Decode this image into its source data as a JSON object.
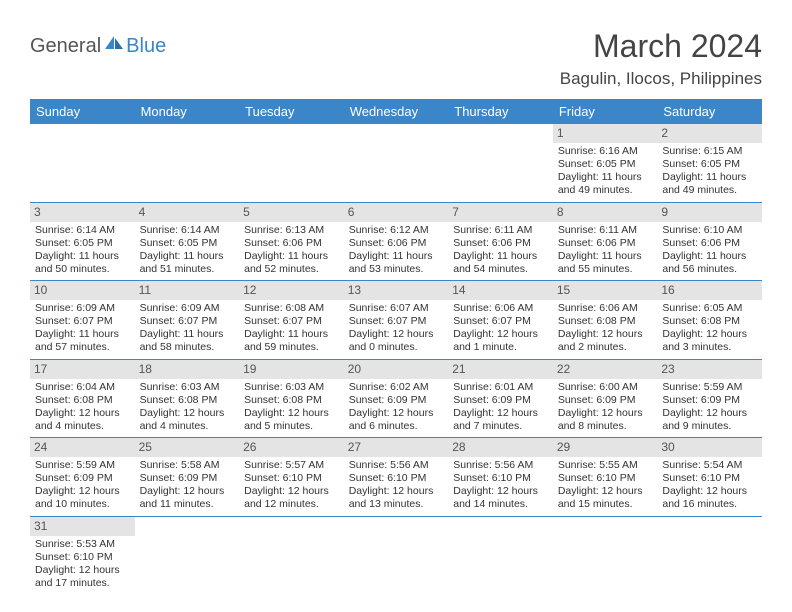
{
  "logo": {
    "text1": "General",
    "text2": "Blue",
    "color_general": "#555555",
    "color_blue": "#3a86c8"
  },
  "title": "March 2024",
  "location": "Bagulin, Ilocos, Philippines",
  "header_bg": "#3a86c8",
  "daynum_bg": "#e4e4e4",
  "border_color": "#3a86c8",
  "weekdays": [
    "Sunday",
    "Monday",
    "Tuesday",
    "Wednesday",
    "Thursday",
    "Friday",
    "Saturday"
  ],
  "weeks": [
    [
      null,
      null,
      null,
      null,
      null,
      {
        "n": "1",
        "sr": "Sunrise: 6:16 AM",
        "ss": "Sunset: 6:05 PM",
        "dl": "Daylight: 11 hours and 49 minutes."
      },
      {
        "n": "2",
        "sr": "Sunrise: 6:15 AM",
        "ss": "Sunset: 6:05 PM",
        "dl": "Daylight: 11 hours and 49 minutes."
      }
    ],
    [
      {
        "n": "3",
        "sr": "Sunrise: 6:14 AM",
        "ss": "Sunset: 6:05 PM",
        "dl": "Daylight: 11 hours and 50 minutes."
      },
      {
        "n": "4",
        "sr": "Sunrise: 6:14 AM",
        "ss": "Sunset: 6:05 PM",
        "dl": "Daylight: 11 hours and 51 minutes."
      },
      {
        "n": "5",
        "sr": "Sunrise: 6:13 AM",
        "ss": "Sunset: 6:06 PM",
        "dl": "Daylight: 11 hours and 52 minutes."
      },
      {
        "n": "6",
        "sr": "Sunrise: 6:12 AM",
        "ss": "Sunset: 6:06 PM",
        "dl": "Daylight: 11 hours and 53 minutes."
      },
      {
        "n": "7",
        "sr": "Sunrise: 6:11 AM",
        "ss": "Sunset: 6:06 PM",
        "dl": "Daylight: 11 hours and 54 minutes."
      },
      {
        "n": "8",
        "sr": "Sunrise: 6:11 AM",
        "ss": "Sunset: 6:06 PM",
        "dl": "Daylight: 11 hours and 55 minutes."
      },
      {
        "n": "9",
        "sr": "Sunrise: 6:10 AM",
        "ss": "Sunset: 6:06 PM",
        "dl": "Daylight: 11 hours and 56 minutes."
      }
    ],
    [
      {
        "n": "10",
        "sr": "Sunrise: 6:09 AM",
        "ss": "Sunset: 6:07 PM",
        "dl": "Daylight: 11 hours and 57 minutes."
      },
      {
        "n": "11",
        "sr": "Sunrise: 6:09 AM",
        "ss": "Sunset: 6:07 PM",
        "dl": "Daylight: 11 hours and 58 minutes."
      },
      {
        "n": "12",
        "sr": "Sunrise: 6:08 AM",
        "ss": "Sunset: 6:07 PM",
        "dl": "Daylight: 11 hours and 59 minutes."
      },
      {
        "n": "13",
        "sr": "Sunrise: 6:07 AM",
        "ss": "Sunset: 6:07 PM",
        "dl": "Daylight: 12 hours and 0 minutes."
      },
      {
        "n": "14",
        "sr": "Sunrise: 6:06 AM",
        "ss": "Sunset: 6:07 PM",
        "dl": "Daylight: 12 hours and 1 minute."
      },
      {
        "n": "15",
        "sr": "Sunrise: 6:06 AM",
        "ss": "Sunset: 6:08 PM",
        "dl": "Daylight: 12 hours and 2 minutes."
      },
      {
        "n": "16",
        "sr": "Sunrise: 6:05 AM",
        "ss": "Sunset: 6:08 PM",
        "dl": "Daylight: 12 hours and 3 minutes."
      }
    ],
    [
      {
        "n": "17",
        "sr": "Sunrise: 6:04 AM",
        "ss": "Sunset: 6:08 PM",
        "dl": "Daylight: 12 hours and 4 minutes."
      },
      {
        "n": "18",
        "sr": "Sunrise: 6:03 AM",
        "ss": "Sunset: 6:08 PM",
        "dl": "Daylight: 12 hours and 4 minutes."
      },
      {
        "n": "19",
        "sr": "Sunrise: 6:03 AM",
        "ss": "Sunset: 6:08 PM",
        "dl": "Daylight: 12 hours and 5 minutes."
      },
      {
        "n": "20",
        "sr": "Sunrise: 6:02 AM",
        "ss": "Sunset: 6:09 PM",
        "dl": "Daylight: 12 hours and 6 minutes."
      },
      {
        "n": "21",
        "sr": "Sunrise: 6:01 AM",
        "ss": "Sunset: 6:09 PM",
        "dl": "Daylight: 12 hours and 7 minutes."
      },
      {
        "n": "22",
        "sr": "Sunrise: 6:00 AM",
        "ss": "Sunset: 6:09 PM",
        "dl": "Daylight: 12 hours and 8 minutes."
      },
      {
        "n": "23",
        "sr": "Sunrise: 5:59 AM",
        "ss": "Sunset: 6:09 PM",
        "dl": "Daylight: 12 hours and 9 minutes."
      }
    ],
    [
      {
        "n": "24",
        "sr": "Sunrise: 5:59 AM",
        "ss": "Sunset: 6:09 PM",
        "dl": "Daylight: 12 hours and 10 minutes."
      },
      {
        "n": "25",
        "sr": "Sunrise: 5:58 AM",
        "ss": "Sunset: 6:09 PM",
        "dl": "Daylight: 12 hours and 11 minutes."
      },
      {
        "n": "26",
        "sr": "Sunrise: 5:57 AM",
        "ss": "Sunset: 6:10 PM",
        "dl": "Daylight: 12 hours and 12 minutes."
      },
      {
        "n": "27",
        "sr": "Sunrise: 5:56 AM",
        "ss": "Sunset: 6:10 PM",
        "dl": "Daylight: 12 hours and 13 minutes."
      },
      {
        "n": "28",
        "sr": "Sunrise: 5:56 AM",
        "ss": "Sunset: 6:10 PM",
        "dl": "Daylight: 12 hours and 14 minutes."
      },
      {
        "n": "29",
        "sr": "Sunrise: 5:55 AM",
        "ss": "Sunset: 6:10 PM",
        "dl": "Daylight: 12 hours and 15 minutes."
      },
      {
        "n": "30",
        "sr": "Sunrise: 5:54 AM",
        "ss": "Sunset: 6:10 PM",
        "dl": "Daylight: 12 hours and 16 minutes."
      }
    ],
    [
      {
        "n": "31",
        "sr": "Sunrise: 5:53 AM",
        "ss": "Sunset: 6:10 PM",
        "dl": "Daylight: 12 hours and 17 minutes."
      },
      null,
      null,
      null,
      null,
      null,
      null
    ]
  ]
}
